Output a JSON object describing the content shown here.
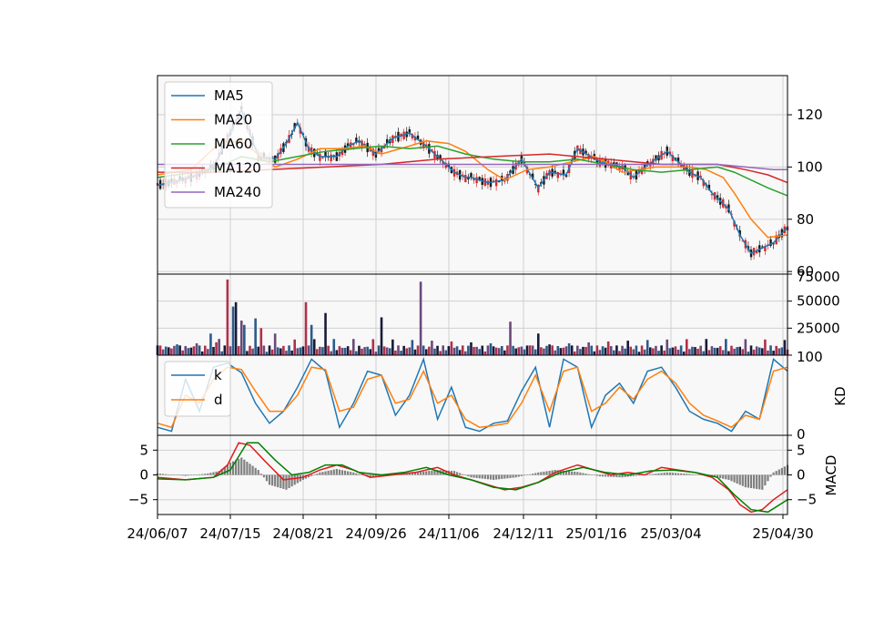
{
  "chart_data": [
    {
      "type": "candlestick",
      "panel": "price",
      "x_range": [
        0,
        225
      ],
      "ylim": [
        59,
        135
      ],
      "yticks": [
        60,
        80,
        100,
        120
      ],
      "grid": true,
      "legend_position": "top-left",
      "series": [
        {
          "name": "MA5",
          "color": "#1f77b4",
          "x": [
            0,
            12,
            20,
            25,
            30,
            36,
            42,
            46,
            50,
            54,
            58,
            64,
            68,
            72,
            78,
            84,
            90,
            96,
            100,
            106,
            110,
            112,
            118,
            124,
            130,
            136,
            140,
            146,
            150,
            158,
            166,
            170,
            174,
            178,
            182,
            186,
            190,
            194,
            198,
            204,
            208,
            212,
            216,
            220,
            225
          ],
          "y": [
            93,
            96,
            100,
            111,
            122,
            104,
            103,
            109,
            117,
            107,
            104,
            104,
            108,
            110,
            105,
            111,
            113,
            108,
            104,
            98,
            96,
            96,
            94,
            95,
            103,
            92,
            98,
            97,
            107,
            102,
            100,
            96,
            100,
            103,
            106,
            102,
            98,
            96,
            90,
            84,
            74,
            67,
            69,
            71,
            77
          ]
        },
        {
          "name": "MA20",
          "color": "#ff7f0e",
          "x": [
            0,
            12,
            22,
            30,
            38,
            42,
            50,
            58,
            66,
            74,
            80,
            90,
            96,
            104,
            110,
            118,
            124,
            128,
            132,
            140,
            148,
            156,
            160,
            166,
            172,
            178,
            184,
            190,
            196,
            202,
            206,
            212,
            218,
            225
          ],
          "y": [
            97,
            99,
            109,
            110,
            103,
            100,
            103,
            107,
            107,
            108,
            105,
            108,
            110,
            109,
            106,
            99,
            95,
            97,
            99,
            100,
            102,
            104,
            102,
            98,
            99,
            100,
            100,
            100,
            99,
            96,
            90,
            80,
            73,
            74
          ]
        },
        {
          "name": "MA60",
          "color": "#2ca02c",
          "x": [
            0,
            20,
            30,
            40,
            50,
            60,
            70,
            80,
            90,
            100,
            110,
            120,
            130,
            140,
            150,
            160,
            170,
            180,
            190,
            200,
            206,
            212,
            218,
            225
          ],
          "y": [
            96,
            99,
            104,
            102,
            104,
            106,
            107,
            108,
            107,
            108,
            105,
            103,
            102,
            102,
            103,
            101,
            99,
            98,
            99,
            100,
            98,
            95,
            92,
            89
          ]
        },
        {
          "name": "MA120",
          "color": "#d62728",
          "x": [
            0,
            20,
            40,
            60,
            80,
            100,
            120,
            140,
            160,
            180,
            200,
            210,
            218,
            225
          ],
          "y": [
            98,
            98,
            99,
            100,
            101,
            103,
            104,
            105,
            103,
            101,
            101,
            99,
            97,
            94
          ]
        },
        {
          "name": "MA240",
          "color": "#9467bd",
          "x": [
            0,
            40,
            80,
            120,
            160,
            200,
            210,
            220,
            225
          ],
          "y": [
            101,
            101,
            101,
            101,
            101,
            101,
            100,
            99,
            99
          ]
        }
      ]
    },
    {
      "type": "bar",
      "panel": "volume",
      "x_range": [
        0,
        225
      ],
      "ylim": [
        0,
        75000
      ],
      "yticks": [
        25000,
        50000,
        75000
      ],
      "grid": true,
      "spikes": [
        {
          "x": 19,
          "value": 20000
        },
        {
          "x": 22,
          "value": 15000
        },
        {
          "x": 25,
          "value": 70000
        },
        {
          "x": 27,
          "value": 45000
        },
        {
          "x": 28,
          "value": 49000
        },
        {
          "x": 30,
          "value": 32000
        },
        {
          "x": 31,
          "value": 28000
        },
        {
          "x": 35,
          "value": 34000
        },
        {
          "x": 37,
          "value": 25000
        },
        {
          "x": 42,
          "value": 20000
        },
        {
          "x": 53,
          "value": 49000
        },
        {
          "x": 55,
          "value": 28000
        },
        {
          "x": 60,
          "value": 39000
        },
        {
          "x": 80,
          "value": 35000
        },
        {
          "x": 94,
          "value": 68000
        },
        {
          "x": 126,
          "value": 31000
        },
        {
          "x": 136,
          "value": 20000
        }
      ]
    },
    {
      "type": "line",
      "panel": "KD",
      "ylabel": "KD",
      "ylim": [
        0,
        100
      ],
      "yticks": [
        0,
        100
      ],
      "grid": true,
      "legend_position": "top-left",
      "series": [
        {
          "name": "k",
          "color": "#1f77b4",
          "x": [
            0,
            5,
            10,
            15,
            20,
            25,
            30,
            35,
            40,
            45,
            50,
            55,
            60,
            65,
            70,
            75,
            80,
            85,
            90,
            95,
            100,
            105,
            110,
            115,
            120,
            125,
            130,
            135,
            140,
            145,
            150,
            155,
            160,
            165,
            170,
            175,
            180,
            185,
            190,
            195,
            200,
            205,
            210,
            215,
            220,
            225
          ],
          "y": [
            10,
            5,
            70,
            30,
            85,
            90,
            78,
            40,
            15,
            30,
            60,
            95,
            80,
            10,
            40,
            80,
            75,
            25,
            50,
            95,
            20,
            60,
            10,
            5,
            15,
            18,
            55,
            85,
            10,
            95,
            85,
            10,
            50,
            65,
            40,
            80,
            85,
            60,
            30,
            20,
            15,
            5,
            30,
            20,
            95,
            80
          ]
        },
        {
          "name": "d",
          "color": "#ff7f0e",
          "x": [
            0,
            5,
            10,
            15,
            20,
            25,
            30,
            35,
            40,
            45,
            50,
            55,
            60,
            65,
            70,
            75,
            80,
            85,
            90,
            95,
            100,
            105,
            110,
            115,
            120,
            125,
            130,
            135,
            140,
            145,
            150,
            155,
            160,
            165,
            170,
            175,
            180,
            185,
            190,
            195,
            200,
            205,
            210,
            215,
            220,
            225
          ],
          "y": [
            15,
            10,
            50,
            40,
            70,
            85,
            82,
            55,
            30,
            30,
            50,
            85,
            82,
            30,
            35,
            70,
            75,
            40,
            45,
            80,
            40,
            50,
            20,
            10,
            12,
            15,
            40,
            75,
            30,
            80,
            85,
            30,
            40,
            60,
            45,
            70,
            80,
            65,
            40,
            25,
            18,
            10,
            25,
            20,
            80,
            85
          ]
        }
      ]
    },
    {
      "type": "line",
      "panel": "MACD",
      "ylabel": "MACD",
      "ylim": [
        -8,
        8
      ],
      "yticks": [
        -5,
        0,
        5
      ],
      "grid": true,
      "xticks": [
        "24/06/07",
        "24/07/15",
        "24/08/21",
        "24/09/26",
        "24/11/06",
        "24/12/11",
        "25/01/16",
        "25/03/04",
        "25/04/30"
      ],
      "series": [
        {
          "name": "",
          "color": "#e31a1c",
          "x": [
            0,
            10,
            20,
            25,
            29,
            33,
            38,
            45,
            52,
            58,
            64,
            70,
            76,
            84,
            92,
            100,
            106,
            112,
            118,
            124,
            130,
            136,
            142,
            150,
            156,
            162,
            168,
            174,
            180,
            186,
            192,
            198,
            204,
            208,
            212,
            216,
            220,
            225
          ],
          "y": [
            -0.5,
            -1,
            -0.5,
            2,
            6.5,
            6,
            3,
            -1,
            -0.5,
            1,
            2,
            1,
            -0.5,
            0,
            0.5,
            1.5,
            0,
            -1,
            -2,
            -3,
            -2.5,
            -1.5,
            0.5,
            2,
            1,
            0,
            0.5,
            0,
            1.5,
            1,
            0.5,
            -0.5,
            -3,
            -6,
            -7.5,
            -7,
            -5,
            -3
          ]
        },
        {
          "name": "",
          "color": "#008000",
          "x": [
            0,
            10,
            20,
            26,
            32,
            36,
            42,
            48,
            54,
            60,
            66,
            72,
            80,
            88,
            96,
            104,
            112,
            120,
            128,
            136,
            144,
            152,
            160,
            168,
            176,
            184,
            192,
            200,
            206,
            212,
            218,
            225
          ],
          "y": [
            -0.8,
            -1,
            -0.5,
            1,
            6.5,
            6.5,
            3,
            0,
            0.5,
            2,
            2,
            0.5,
            0,
            0.5,
            1.5,
            0,
            -1,
            -2.5,
            -3,
            -1.5,
            0.5,
            1.5,
            0.5,
            0,
            0.8,
            1,
            0.5,
            -0.5,
            -4,
            -7,
            -7.5,
            -5
          ]
        },
        {
          "name": "histogram",
          "color": "#808080",
          "x": [
            0,
            10,
            18,
            22,
            26,
            30,
            36,
            40,
            46,
            52,
            58,
            64,
            70,
            76,
            84,
            92,
            100,
            106,
            112,
            120,
            128,
            136,
            142,
            150,
            158,
            166,
            174,
            182,
            190,
            198,
            204,
            210,
            216,
            220,
            225
          ],
          "y": [
            0.3,
            -0.2,
            0.3,
            0.8,
            2.5,
            3.5,
            1,
            -2,
            -3,
            -1,
            0.5,
            1.2,
            0.5,
            -0.5,
            0,
            0.5,
            1,
            0.8,
            -0.5,
            -1,
            -0.5,
            0.5,
            1,
            0.6,
            -0.3,
            -0.5,
            0,
            0.5,
            0.2,
            -0.3,
            -1,
            -2.5,
            -3,
            0.5,
            2
          ]
        }
      ]
    }
  ]
}
